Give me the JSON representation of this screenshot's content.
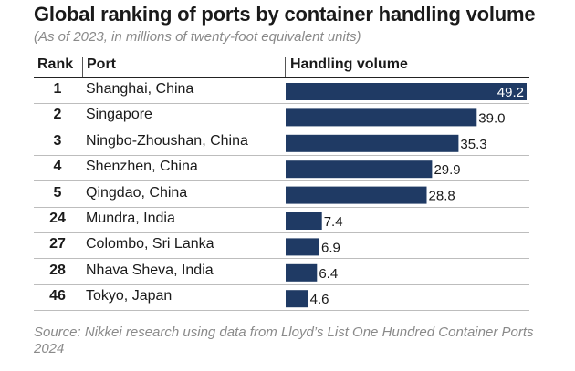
{
  "title": "Global ranking of ports by container handling volume",
  "subtitle": "(As of 2023, in millions of twenty-foot equivalent units)",
  "headers": {
    "rank": "Rank",
    "port": "Port",
    "volume": "Handling volume"
  },
  "footer": "Source: Nikkei research using data from Lloyd’s List One Hundred Container Ports 2024",
  "colors": {
    "bar": "#1f3a64",
    "inside_label": "#ffffff"
  },
  "chart_data": {
    "type": "bar",
    "orientation": "horizontal",
    "title": "Global ranking of ports by container handling volume",
    "subtitle": "(As of 2023, in millions of twenty-foot equivalent units)",
    "categories": [
      "Shanghai, China",
      "Singapore",
      "Ningbo-Zhoushan, China",
      "Shenzhen, China",
      "Qingdao, China",
      "Mundra, India",
      "Colombo, Sri Lanka",
      "Nhava Sheva, India",
      "Tokyo, Japan"
    ],
    "ranks": [
      "1",
      "2",
      "3",
      "4",
      "5",
      "24",
      "27",
      "28",
      "46"
    ],
    "values": [
      49.2,
      39.0,
      35.3,
      29.9,
      28.8,
      7.4,
      6.9,
      6.4,
      4.6
    ],
    "value_labels": [
      "49.2",
      "39.0",
      "35.3",
      "29.9",
      "28.8",
      "7.4",
      "6.9",
      "6.4",
      "4.6"
    ],
    "xlim": [
      0,
      49.2
    ],
    "grid": false,
    "legend": "none"
  }
}
